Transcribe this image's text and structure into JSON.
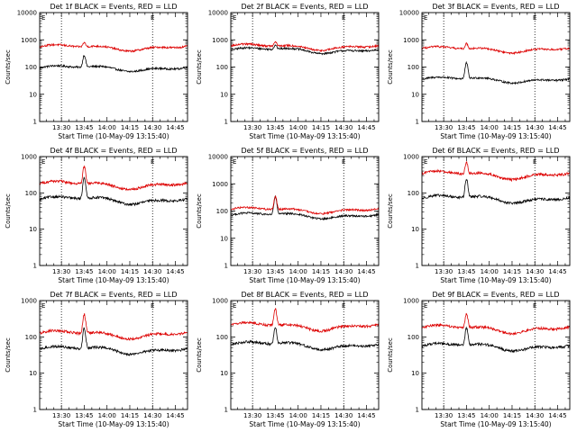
{
  "chart_data": [
    {
      "type": "line",
      "title": "Det 1f BLACK = Events, RED = LLD",
      "ylabel": "Counts/sec",
      "xlabel": "Start Time (10-May-09 13:15:40)",
      "yscale": "log",
      "ylim": [
        1,
        10000
      ],
      "ytick_labels": [
        "1",
        "10",
        "100",
        "1000",
        "10000"
      ],
      "xlim": [
        "13:15:40",
        "14:53:00"
      ],
      "xtick_labels": [
        "13:30",
        "13:45",
        "14:00",
        "14:15",
        "14:30",
        "14:45"
      ],
      "vlines": [
        "13:30",
        "14:30"
      ],
      "annotation": "E",
      "series": [
        {
          "color": "#000000",
          "baseline": 92,
          "peak": 250,
          "peak_time": "13:45"
        },
        {
          "color": "#dd0000",
          "baseline": 530,
          "peak": 760,
          "peak_time": "13:45"
        }
      ]
    },
    {
      "type": "line",
      "title": "Det 2f BLACK = Events, RED = LLD",
      "ylabel": "Counts/sec",
      "xlabel": "Start Time (10-May-09 13:15:40)",
      "yscale": "log",
      "ylim": [
        1,
        10000
      ],
      "ytick_labels": [
        "1",
        "10",
        "100",
        "1000",
        "10000"
      ],
      "xlim": [
        "13:15:40",
        "14:53:00"
      ],
      "xtick_labels": [
        "13:30",
        "13:45",
        "14:00",
        "14:15",
        "14:30",
        "14:45"
      ],
      "vlines": [
        "13:30",
        "14:30"
      ],
      "annotation": "E",
      "series": [
        {
          "color": "#000000",
          "baseline": 420,
          "peak": 600,
          "peak_time": "13:45"
        },
        {
          "color": "#dd0000",
          "baseline": 560,
          "peak": 800,
          "peak_time": "13:45"
        }
      ]
    },
    {
      "type": "line",
      "title": "Det 3f BLACK = Events, RED = LLD",
      "ylabel": "Counts/sec",
      "xlabel": "Start Time (10-May-09 13:15:40)",
      "yscale": "log",
      "ylim": [
        1,
        10000
      ],
      "ytick_labels": [
        "1",
        "10",
        "100",
        "1000",
        "10000"
      ],
      "xlim": [
        "13:15:40",
        "14:53:00"
      ],
      "xtick_labels": [
        "13:30",
        "13:45",
        "14:00",
        "14:15",
        "14:30",
        "14:45"
      ],
      "vlines": [
        "13:30",
        "14:30"
      ],
      "annotation": "E",
      "series": [
        {
          "color": "#000000",
          "baseline": 35,
          "peak": 130,
          "peak_time": "13:45"
        },
        {
          "color": "#dd0000",
          "baseline": 450,
          "peak": 700,
          "peak_time": "13:45"
        }
      ]
    },
    {
      "type": "line",
      "title": "Det 4f BLACK = Events, RED = LLD",
      "ylabel": "Counts/sec",
      "xlabel": "Start Time (10-May-09 13:15:40)",
      "yscale": "log",
      "ylim": [
        1,
        1000
      ],
      "ytick_labels": [
        "1",
        "10",
        "100",
        "1000"
      ],
      "xlim": [
        "13:15:40",
        "14:53:00"
      ],
      "xtick_labels": [
        "13:30",
        "13:45",
        "14:00",
        "14:15",
        "14:30",
        "14:45"
      ],
      "vlines": [
        "13:30",
        "14:30"
      ],
      "annotation": "E",
      "series": [
        {
          "color": "#000000",
          "baseline": 65,
          "peak": 250,
          "peak_time": "13:45"
        },
        {
          "color": "#dd0000",
          "baseline": 170,
          "peak": 500,
          "peak_time": "13:45"
        }
      ]
    },
    {
      "type": "line",
      "title": "Det 5f BLACK = Events, RED = LLD",
      "ylabel": "Counts/sec",
      "xlabel": "Start Time (10-May-09 13:15:40)",
      "yscale": "log",
      "ylim": [
        1,
        10000
      ],
      "ytick_labels": [
        "1",
        "10",
        "100",
        "1000",
        "10000"
      ],
      "xlim": [
        "13:15:40",
        "14:53:00"
      ],
      "xtick_labels": [
        "13:30",
        "13:45",
        "14:00",
        "14:15",
        "14:30",
        "14:45"
      ],
      "vlines": [
        "13:30",
        "14:30"
      ],
      "annotation": "E",
      "series": [
        {
          "color": "#000000",
          "baseline": 70,
          "peak": 300,
          "peak_time": "13:45"
        },
        {
          "color": "#dd0000",
          "baseline": 110,
          "peak": 320,
          "peak_time": "13:45"
        }
      ]
    },
    {
      "type": "line",
      "title": "Det 6f BLACK = Events, RED = LLD",
      "ylabel": "Counts/sec",
      "xlabel": "Start Time (10-May-09 13:15:40)",
      "yscale": "log",
      "ylim": [
        1,
        1000
      ],
      "ytick_labels": [
        "1",
        "10",
        "100",
        "1000"
      ],
      "xlim": [
        "13:15:40",
        "14:53:00"
      ],
      "xtick_labels": [
        "13:30",
        "13:45",
        "14:00",
        "14:15",
        "14:30",
        "14:45"
      ],
      "vlines": [
        "13:30",
        "14:30"
      ],
      "annotation": "E",
      "series": [
        {
          "color": "#000000",
          "baseline": 70,
          "peak": 220,
          "peak_time": "13:45"
        },
        {
          "color": "#dd0000",
          "baseline": 320,
          "peak": 650,
          "peak_time": "13:45"
        }
      ]
    },
    {
      "type": "line",
      "title": "Det 7f BLACK = Events, RED = LLD",
      "ylabel": "Counts/sec",
      "xlabel": "Start Time (10-May-09 13:15:40)",
      "yscale": "log",
      "ylim": [
        1,
        1000
      ],
      "ytick_labels": [
        "1",
        "10",
        "100",
        "1000"
      ],
      "xlim": [
        "13:15:40",
        "14:53:00"
      ],
      "xtick_labels": [
        "13:30",
        "13:45",
        "14:00",
        "14:15",
        "14:30",
        "14:45"
      ],
      "vlines": [
        "13:30",
        "14:30"
      ],
      "annotation": "E",
      "series": [
        {
          "color": "#000000",
          "baseline": 45,
          "peak": 160,
          "peak_time": "13:45"
        },
        {
          "color": "#dd0000",
          "baseline": 120,
          "peak": 400,
          "peak_time": "13:45"
        }
      ]
    },
    {
      "type": "line",
      "title": "Det 8f BLACK = Events, RED = LLD",
      "ylabel": "Counts/sec",
      "xlabel": "Start Time (10-May-09 13:15:40)",
      "yscale": "log",
      "ylim": [
        1,
        1000
      ],
      "ytick_labels": [
        "1",
        "10",
        "100",
        "1000"
      ],
      "xlim": [
        "13:15:40",
        "14:53:00"
      ],
      "xtick_labels": [
        "13:30",
        "13:45",
        "14:00",
        "14:15",
        "14:30",
        "14:45"
      ],
      "vlines": [
        "13:30",
        "14:30"
      ],
      "annotation": "E",
      "series": [
        {
          "color": "#000000",
          "baseline": 60,
          "peak": 170,
          "peak_time": "13:45"
        },
        {
          "color": "#dd0000",
          "baseline": 200,
          "peak": 550,
          "peak_time": "13:45"
        }
      ]
    },
    {
      "type": "line",
      "title": "Det 9f BLACK = Events, RED = LLD",
      "ylabel": "Counts/sec",
      "xlabel": "Start Time (10-May-09 13:15:40)",
      "yscale": "log",
      "ylim": [
        1,
        1000
      ],
      "ytick_labels": [
        "1",
        "10",
        "100",
        "1000"
      ],
      "xlim": [
        "13:15:40",
        "14:53:00"
      ],
      "xtick_labels": [
        "13:30",
        "13:45",
        "14:00",
        "14:15",
        "14:30",
        "14:45"
      ],
      "vlines": [
        "13:30",
        "14:30"
      ],
      "annotation": "E",
      "series": [
        {
          "color": "#000000",
          "baseline": 55,
          "peak": 160,
          "peak_time": "13:45"
        },
        {
          "color": "#dd0000",
          "baseline": 170,
          "peak": 420,
          "peak_time": "13:45"
        }
      ]
    }
  ]
}
